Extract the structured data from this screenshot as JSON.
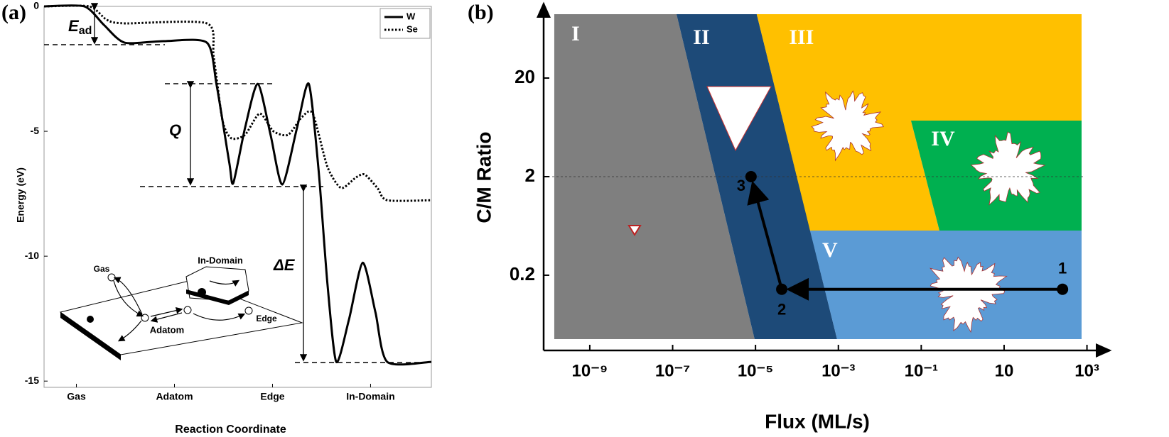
{
  "chart_data": [
    {
      "type": "line",
      "panel_label": "(a)",
      "xlabel": "Reaction Coordinate",
      "ylabel": "Energy (eV)",
      "xlim": [
        0.67,
        4.62
      ],
      "xticks": [
        {
          "value": 1,
          "label": "Gas"
        },
        {
          "value": 2,
          "label": "Adatom"
        },
        {
          "value": 3,
          "label": "Edge"
        },
        {
          "value": 4,
          "label": "In-Domain"
        }
      ],
      "ylim": [
        -15.25,
        0
      ],
      "yticks": [
        0,
        -5,
        -10,
        -15
      ],
      "legend": "upper right",
      "series": [
        {
          "name": "W",
          "color": "#000000",
          "dash": "solid",
          "x": [
            0.67,
            1.08,
            1.28,
            1.49,
            1.89,
            2.33,
            2.43,
            2.56,
            2.6,
            2.72,
            2.85,
            2.98,
            3.1,
            3.25,
            3.37,
            3.47,
            3.56,
            3.65,
            3.78,
            3.92,
            4.05,
            4.17,
            4.62
          ],
          "values": [
            0,
            0,
            -0.74,
            -1.45,
            -1.39,
            -1.45,
            -3.15,
            -6.28,
            -7.07,
            -4.86,
            -3.1,
            -5.14,
            -7.13,
            -4.86,
            -3.1,
            -6.56,
            -11.1,
            -14.23,
            -12.53,
            -10.26,
            -12.25,
            -14.23,
            -14.23
          ]
        },
        {
          "name": "Se",
          "color": "#000000",
          "dash": "dotted",
          "x": [
            0.67,
            1.13,
            1.31,
            1.49,
            2.33,
            2.4,
            2.49,
            2.58,
            2.72,
            2.87,
            3.01,
            3.16,
            3.3,
            3.41,
            3.56,
            3.7,
            3.85,
            3.94,
            4.07,
            4.17,
            4.62
          ],
          "values": [
            0,
            0,
            -0.54,
            -0.68,
            -0.68,
            -2.02,
            -4.57,
            -5.28,
            -5.14,
            -4.29,
            -5.0,
            -5.14,
            -4.43,
            -4.29,
            -6.42,
            -7.27,
            -6.85,
            -6.73,
            -7.27,
            -7.76,
            -7.76
          ]
        }
      ],
      "annotations": [
        {
          "text": "E",
          "subscript": "ad"
        },
        {
          "text": "Q"
        },
        {
          "text": "ΔE"
        }
      ],
      "inset": {
        "labels": [
          "Gas",
          "Adatom",
          "In-Domain",
          "Edge"
        ]
      }
    },
    {
      "type": "region",
      "panel_label": "(b)",
      "xlabel": "Flux (ML/s)",
      "ylabel": "C/M Ratio",
      "log_x": true,
      "log_y": true,
      "xlim": [
        7.7e-11,
        3600
      ],
      "xticks": [
        {
          "value": 1e-09,
          "label": "10⁻⁹"
        },
        {
          "value": 1e-07,
          "label": "10⁻⁷"
        },
        {
          "value": 1e-05,
          "label": "10⁻⁵"
        },
        {
          "value": 0.001,
          "label": "10⁻³"
        },
        {
          "value": 0.1,
          "label": "10⁻¹"
        },
        10,
        {
          "value": 1000,
          "label": "10³"
        }
      ],
      "ylim": [
        0.0345,
        114
      ],
      "yticks": [
        0.2,
        2,
        20
      ],
      "reference_line": 2,
      "regions": [
        {
          "name": "I",
          "color": "#7f7f7f",
          "x": [
            1.39e-10,
            1.24e-07,
            9.5e-06,
            1.39e-10
          ],
          "y": [
            89,
            89,
            0.045,
            0.045
          ]
        },
        {
          "name": "II",
          "color": "#1d4a78",
          "x": [
            1.24e-07,
            1.07e-05,
            0.00093,
            9.5e-06
          ],
          "y": [
            89,
            89,
            0.045,
            0.045
          ]
        },
        {
          "name": "III",
          "color": "#ffc000",
          "x": [
            1.07e-05,
            741,
            741,
            0.0566,
            0.275,
            0.000207
          ],
          "y": [
            89,
            89,
            7.4,
            7.4,
            0.568,
            0.568
          ]
        },
        {
          "name": "IV",
          "color": "#00b050",
          "x": [
            0.0566,
            741,
            741,
            0.275
          ],
          "y": [
            7.4,
            7.4,
            0.568,
            0.568
          ]
        },
        {
          "name": "V",
          "color": "#5b9bd5",
          "x": [
            0.000207,
            741,
            741,
            0.00093
          ],
          "y": [
            0.568,
            0.568,
            0.045,
            0.045
          ]
        }
      ],
      "points": {
        "x": [
          257,
          4.3e-05,
          7.8e-06
        ],
        "y": [
          0.144,
          0.144,
          2
        ],
        "labels": [
          "1",
          "2",
          "3"
        ]
      }
    }
  ]
}
